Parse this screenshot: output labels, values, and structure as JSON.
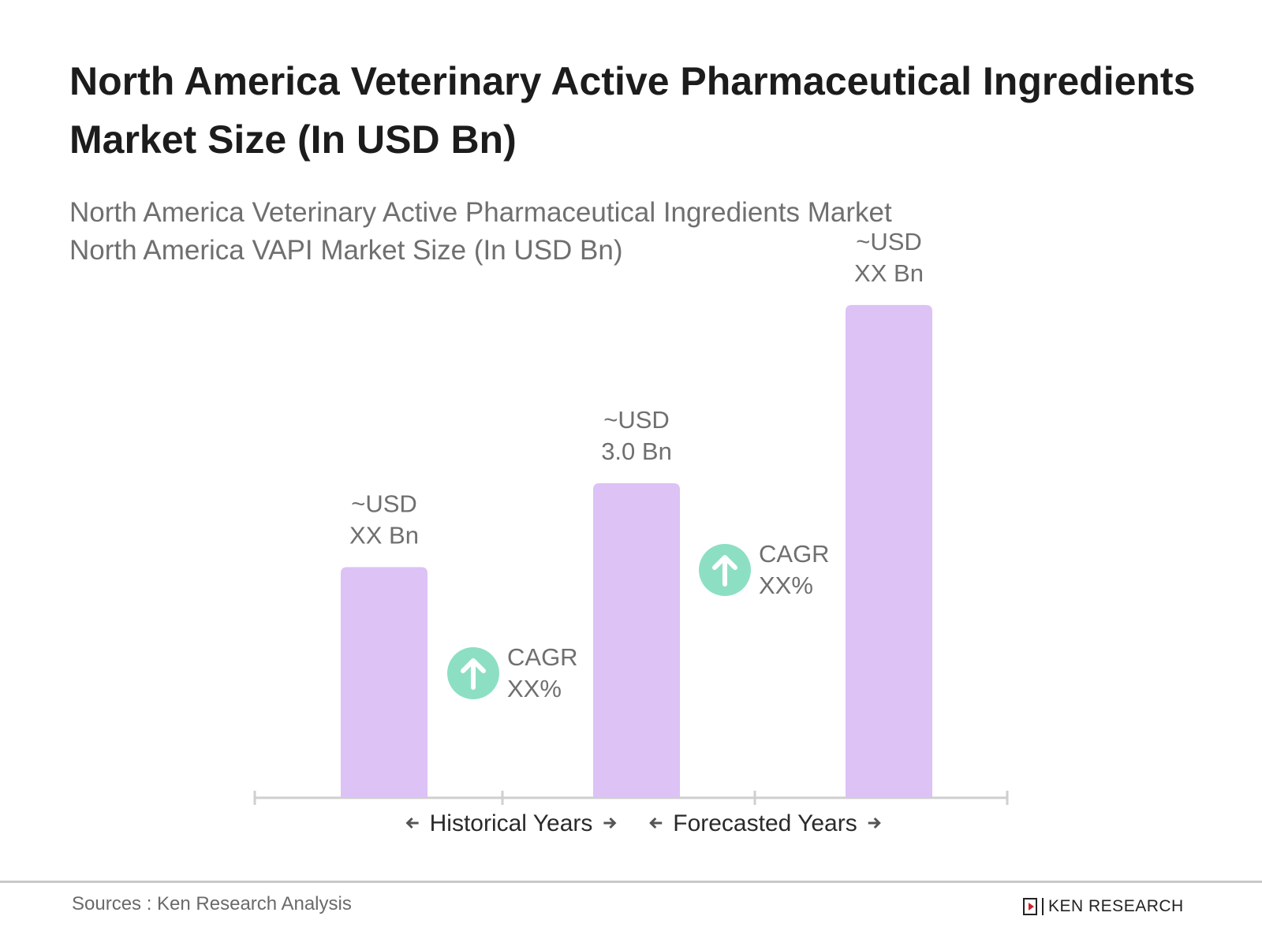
{
  "chart_data": {
    "type": "bar",
    "title": "North America Veterinary Active Pharmaceutical Ingredients Market Size (In USD Bn)",
    "subtitle": [
      "North America Veterinary Active Pharmaceutical Ingredients Market",
      "North America VAPI Market Size (In USD Bn)"
    ],
    "xlabel": "",
    "ylabel": "",
    "categories": [
      "",
      "",
      ""
    ],
    "values": [
      2.2,
      3.0,
      4.7
    ],
    "data_labels": [
      [
        "~USD",
        "XX Bn"
      ],
      [
        "~USD",
        "3.0 Bn"
      ],
      [
        "~USD",
        "XX Bn"
      ]
    ],
    "bar_color": "#dcc2f5",
    "grid": false,
    "axis_sections": [
      {
        "label": "Historical Years"
      },
      {
        "label": "Forecasted Years"
      }
    ],
    "annotations": [
      {
        "type": "cagr",
        "label": "CAGR",
        "value": "XX%",
        "icon": "arrow-up-circle-icon",
        "color": "#8ddfc4"
      },
      {
        "type": "cagr",
        "label": "CAGR",
        "value": "XX%",
        "icon": "arrow-up-circle-icon",
        "color": "#8ddfc4"
      }
    ]
  },
  "footer": {
    "source": "Sources : Ken Research Analysis",
    "logo_text": "KEN RESEARCH"
  }
}
